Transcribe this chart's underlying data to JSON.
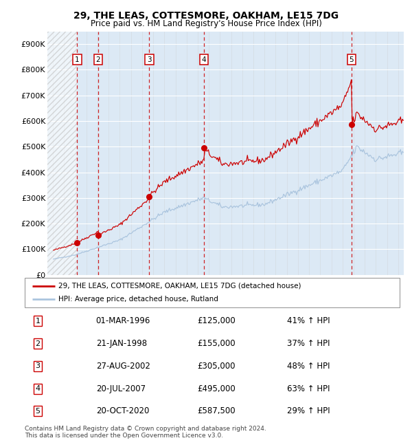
{
  "title": "29, THE LEAS, COTTESMORE, OAKHAM, LE15 7DG",
  "subtitle": "Price paid vs. HM Land Registry's House Price Index (HPI)",
  "background_color": "#ffffff",
  "plot_bg_color": "#dce9f5",
  "grid_color": "#ffffff",
  "red_line_color": "#cc0000",
  "blue_line_color": "#aac4de",
  "sale_marker_color": "#cc0000",
  "vline_color": "#cc0000",
  "sale_dates_x": [
    1996.17,
    1998.06,
    2002.65,
    2007.55,
    2020.8
  ],
  "sale_prices": [
    125000,
    155000,
    305000,
    495000,
    587500
  ],
  "sale_labels": [
    "1",
    "2",
    "3",
    "4",
    "5"
  ],
  "legend_line1": "29, THE LEAS, COTTESMORE, OAKHAM, LE15 7DG (detached house)",
  "legend_line2": "HPI: Average price, detached house, Rutland",
  "table_data": [
    [
      "1",
      "01-MAR-1996",
      "£125,000",
      "41% ↑ HPI"
    ],
    [
      "2",
      "21-JAN-1998",
      "£155,000",
      "37% ↑ HPI"
    ],
    [
      "3",
      "27-AUG-2002",
      "£305,000",
      "48% ↑ HPI"
    ],
    [
      "4",
      "20-JUL-2007",
      "£495,000",
      "63% ↑ HPI"
    ],
    [
      "5",
      "20-OCT-2020",
      "£587,500",
      "29% ↑ HPI"
    ]
  ],
  "footer": "Contains HM Land Registry data © Crown copyright and database right 2024.\nThis data is licensed under the Open Government Licence v3.0.",
  "xlim": [
    1993.5,
    2025.5
  ],
  "ylim": [
    0,
    950000
  ],
  "yticks": [
    0,
    100000,
    200000,
    300000,
    400000,
    500000,
    600000,
    700000,
    800000,
    900000
  ],
  "ytick_labels": [
    "£0",
    "£100K",
    "£200K",
    "£300K",
    "£400K",
    "£500K",
    "£600K",
    "£700K",
    "£800K",
    "£900K"
  ],
  "xticks": [
    1994,
    1995,
    1996,
    1997,
    1998,
    1999,
    2000,
    2001,
    2002,
    2003,
    2004,
    2005,
    2006,
    2007,
    2008,
    2009,
    2010,
    2011,
    2012,
    2013,
    2014,
    2015,
    2016,
    2017,
    2018,
    2019,
    2020,
    2021,
    2022,
    2023,
    2024,
    2025
  ]
}
